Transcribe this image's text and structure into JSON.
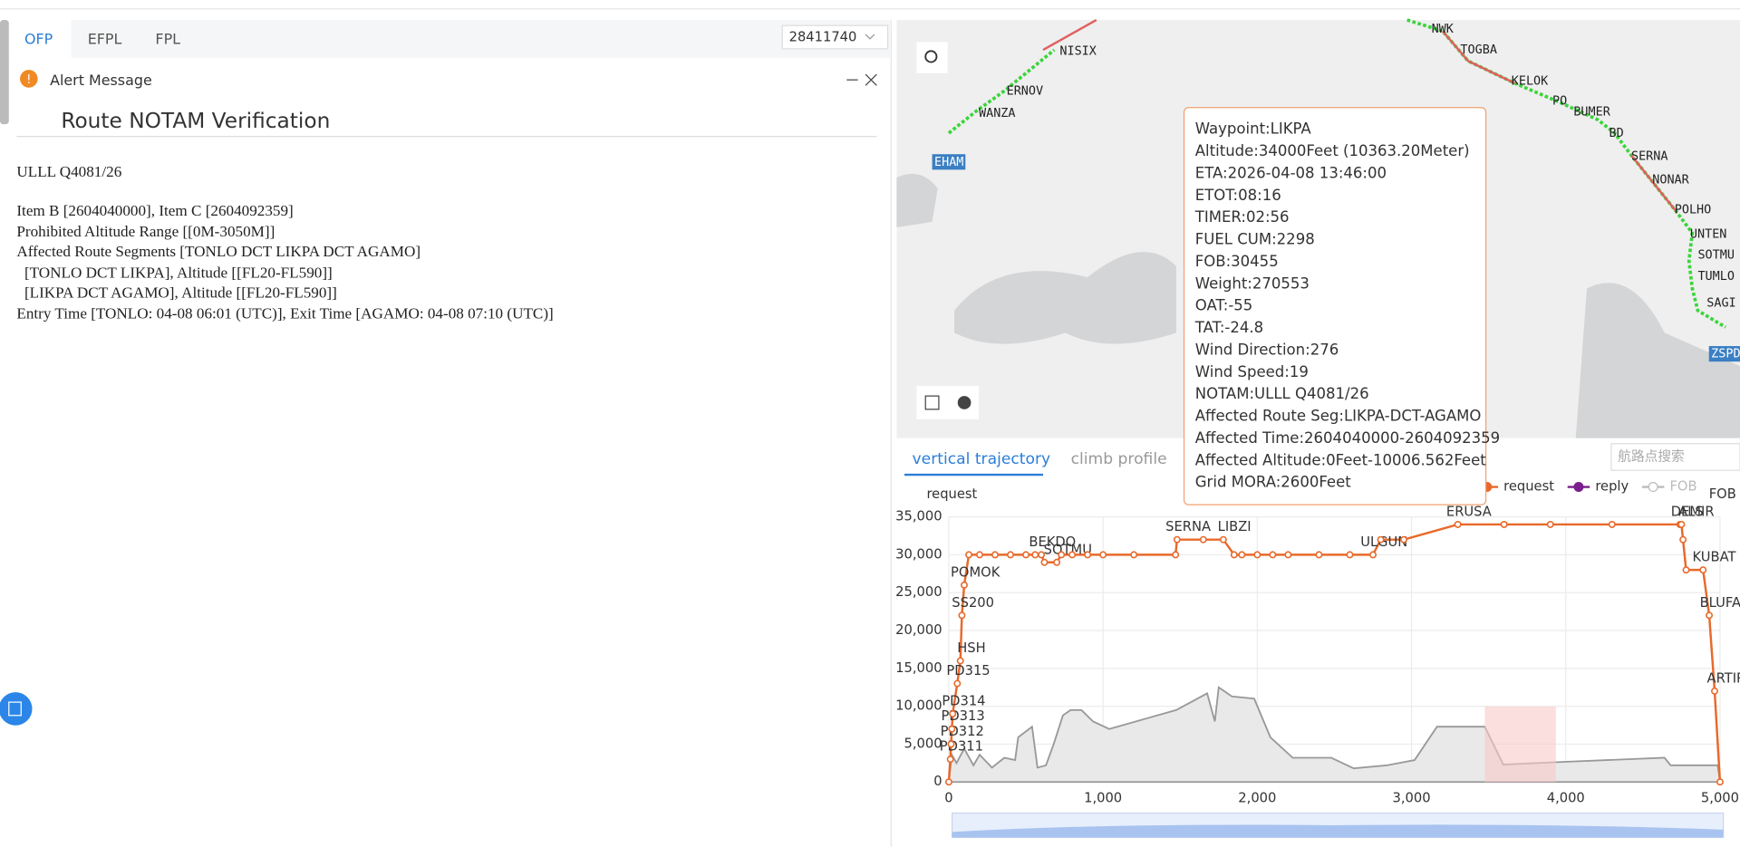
{
  "tabs": [
    "OFP",
    "EFPL",
    "FPL"
  ],
  "flight_select": "28411740",
  "alert": {
    "title": "Alert Message",
    "heading": "Route NOTAM Verification",
    "lines": [
      "ULLL Q4081/26",
      "Item B [2604040000], Item C [2604092359]",
      "Prohibited Altitude Range [[0M-3050M]]",
      "Affected Route Segments [TONLO DCT LIKPA DCT AGAMO]",
      "[TONLO DCT LIKPA], Altitude [[FL20-FL590]]",
      "[LIKPA DCT AGAMO], Altitude [[FL20-FL590]]",
      "Entry Time [TONLO: 04-08 06:01 (UTC)], Exit Time [AGAMO: 04-08 07:10 (UTC)]"
    ]
  },
  "map": {
    "waypoints": [
      "NISIX",
      "ERNOV",
      "WANZA",
      "EHAM",
      "NWK",
      "TOGBA",
      "KELOK",
      "PO",
      "BUMER",
      "BD",
      "SERNA",
      "NONAR",
      "POLHO",
      "UNTEN",
      "SOTMU",
      "TUMLO",
      "SAGI",
      "ZSPD"
    ]
  },
  "tooltip": [
    "Waypoint:LIKPA",
    "Altitude:34000Feet (10363.20Meter)",
    "ETA:2026-04-08 13:46:00",
    "ETOT:08:16",
    "TIMER:02:56",
    "FUEL CUM:2298",
    "FOB:30455",
    "Weight:270553",
    "OAT:-55",
    "TAT:-24.8",
    "Wind Direction:276",
    "Wind Speed:19",
    "NOTAM:ULLL Q4081/26",
    "Affected Route Seg:LIKPA-DCT-AGAMO",
    "Affected Time:2604040000-2604092359",
    "Affected Altitude:0Feet-10006.562Feet",
    "Grid MORA:2600Feet"
  ],
  "chart_tabs": [
    "vertical trajectory",
    "climb profile"
  ],
  "search_placeholder": "航路点搜索",
  "chart_data": {
    "type": "line",
    "y_label": "request",
    "y2_label": "FOB",
    "legend": [
      {
        "name": "request",
        "color": "#e8692a"
      },
      {
        "name": "reply",
        "color": "#7b1d8c"
      },
      {
        "name": "FOB",
        "color": "#bbbbbb"
      }
    ],
    "x": [
      0,
      10,
      15,
      20,
      25,
      55,
      75,
      85,
      100,
      130,
      200,
      300,
      400,
      500,
      560,
      600,
      620,
      700,
      730,
      800,
      900,
      1000,
      1200,
      1470,
      1480,
      1650,
      1780,
      1850,
      1900,
      2000,
      2100,
      2200,
      2400,
      2600,
      2750,
      2800,
      2950,
      3300,
      3600,
      3900,
      4300,
      4740,
      4750,
      4760,
      4780,
      4890,
      4930,
      4965,
      5000
    ],
    "labels": [
      null,
      "PD311",
      "PD312",
      "PD313",
      "PD314",
      "PD315",
      "HSH",
      "SS200",
      "POMOK",
      null,
      null,
      null,
      null,
      null,
      null,
      "BEKDO",
      null,
      "SOTMU",
      null,
      null,
      null,
      null,
      null,
      null,
      "SERNA",
      null,
      "LIBZI",
      null,
      null,
      null,
      null,
      null,
      null,
      null,
      "ULGUN",
      null,
      null,
      "ERUSA",
      null,
      null,
      null,
      "ALS",
      "DEMIR",
      null,
      null,
      "KUBAT",
      "BLUFA",
      "ARTIP",
      null
    ],
    "series": [
      {
        "name": "request",
        "color": "#e8692a",
        "values": [
          0,
          3000,
          5000,
          7000,
          9000,
          13000,
          16000,
          22000,
          26000,
          30000,
          30000,
          30000,
          30000,
          30000,
          30000,
          30000,
          29000,
          29000,
          30000,
          30000,
          30000,
          30000,
          30000,
          30000,
          32000,
          32000,
          32000,
          30000,
          30000,
          30000,
          30000,
          30000,
          30000,
          30000,
          30000,
          32000,
          32000,
          34000,
          34000,
          34000,
          34000,
          34000,
          34000,
          32000,
          28000,
          28000,
          22000,
          12000,
          0
        ]
      }
    ],
    "terrain": {
      "color": "#999999",
      "x": [
        0,
        20,
        50,
        100,
        160,
        200,
        280,
        360,
        430,
        450,
        540,
        575,
        630,
        680,
        740,
        790,
        860,
        935,
        1040,
        1475,
        1675,
        1725,
        1750,
        1835,
        1980,
        2085,
        2230,
        2480,
        2625,
        2840,
        3020,
        3165,
        3475,
        3595,
        3920,
        4640,
        4680,
        4985,
        5000
      ],
      "values": [
        0,
        3600,
        2500,
        4400,
        2200,
        3600,
        1900,
        3200,
        2900,
        5900,
        7300,
        1900,
        2200,
        5000,
        8800,
        9500,
        9500,
        8000,
        7000,
        9500,
        11700,
        8000,
        12500,
        11300,
        11000,
        5900,
        3200,
        3200,
        1800,
        2200,
        2900,
        7300,
        7300,
        2300,
        2600,
        3200,
        2200,
        2200,
        0
      ]
    },
    "xlim": [
      0,
      5000
    ],
    "ylim": [
      0,
      35000
    ],
    "xticks": [
      0,
      {
        "value": 1000,
        "label": "1,000"
      },
      {
        "value": 2000,
        "label": "2,000"
      },
      {
        "value": 3000,
        "label": "3,000"
      },
      {
        "value": 4000,
        "label": "4,000"
      },
      {
        "value": 5000,
        "label": "5,000"
      }
    ],
    "yticks": [
      0,
      {
        "value": 5000,
        "label": "5,000"
      },
      {
        "value": 10000,
        "label": "10,000"
      },
      {
        "value": 15000,
        "label": "15,000"
      },
      {
        "value": 20000,
        "label": "20,000"
      },
      {
        "value": 25000,
        "label": "25,000"
      },
      {
        "value": 30000,
        "label": "30,000"
      },
      {
        "value": 35000,
        "label": "35,000"
      }
    ],
    "grid": true
  }
}
